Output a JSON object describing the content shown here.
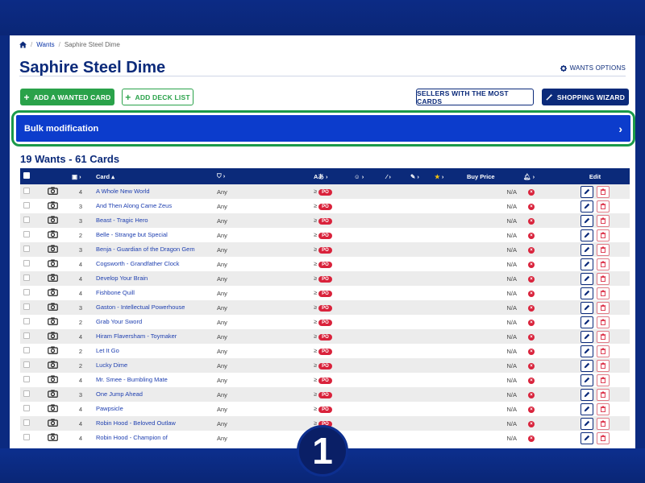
{
  "breadcrumb": {
    "wants": "Wants",
    "current": "Saphire Steel Dime"
  },
  "page_title": "Saphire Steel Dime",
  "wants_options_label": "WANTS OPTIONS",
  "buttons": {
    "add_wanted_card": "ADD A WANTED CARD",
    "add_deck_list": "ADD DECK LIST",
    "sellers_most_cards": "SELLERS WITH THE MOST CARDS",
    "shopping_wizard": "SHOPPING WIZARD"
  },
  "bulk_modification": "Bulk modification",
  "wants_summary": "19 Wants - 61 Cards",
  "step_number": "1",
  "table": {
    "headers": {
      "card": "Card",
      "buy_price": "Buy Price",
      "edit": "Edit"
    },
    "rows": [
      {
        "qty": "4",
        "name": "A Whole New World",
        "condition": "Any",
        "ge": "≥",
        "po": "PO",
        "price": "N/A"
      },
      {
        "qty": "3",
        "name": "And Then Along Came Zeus",
        "condition": "Any",
        "ge": "≥",
        "po": "PO",
        "price": "N/A"
      },
      {
        "qty": "3",
        "name": "Beast - Tragic Hero",
        "condition": "Any",
        "ge": "≥",
        "po": "PO",
        "price": "N/A"
      },
      {
        "qty": "2",
        "name": "Belle - Strange but Special",
        "condition": "Any",
        "ge": "≥",
        "po": "PO",
        "price": "N/A"
      },
      {
        "qty": "3",
        "name": "Benja - Guardian of the Dragon Gem",
        "condition": "Any",
        "ge": "≥",
        "po": "PO",
        "price": "N/A"
      },
      {
        "qty": "4",
        "name": "Cogsworth - Grandfather Clock",
        "condition": "Any",
        "ge": "≥",
        "po": "PO",
        "price": "N/A"
      },
      {
        "qty": "4",
        "name": "Develop Your Brain",
        "condition": "Any",
        "ge": "≥",
        "po": "PO",
        "price": "N/A"
      },
      {
        "qty": "4",
        "name": "Fishbone Quill",
        "condition": "Any",
        "ge": "≥",
        "po": "PO",
        "price": "N/A"
      },
      {
        "qty": "3",
        "name": "Gaston - Intellectual Powerhouse",
        "condition": "Any",
        "ge": "≥",
        "po": "PO",
        "price": "N/A"
      },
      {
        "qty": "2",
        "name": "Grab Your Sword",
        "condition": "Any",
        "ge": "≥",
        "po": "PO",
        "price": "N/A"
      },
      {
        "qty": "4",
        "name": "Hiram Flaversham - Toymaker",
        "condition": "Any",
        "ge": "≥",
        "po": "PO",
        "price": "N/A"
      },
      {
        "qty": "2",
        "name": "Let It Go",
        "condition": "Any",
        "ge": "≥",
        "po": "PO",
        "price": "N/A"
      },
      {
        "qty": "2",
        "name": "Lucky Dime",
        "condition": "Any",
        "ge": "≥",
        "po": "PO",
        "price": "N/A"
      },
      {
        "qty": "4",
        "name": "Mr. Smee - Bumbling Mate",
        "condition": "Any",
        "ge": "≥",
        "po": "PO",
        "price": "N/A"
      },
      {
        "qty": "3",
        "name": "One Jump Ahead",
        "condition": "Any",
        "ge": "≥",
        "po": "PO",
        "price": "N/A"
      },
      {
        "qty": "4",
        "name": "Pawpsicle",
        "condition": "Any",
        "ge": "≥",
        "po": "PO",
        "price": "N/A"
      },
      {
        "qty": "4",
        "name": "Robin Hood - Beloved Outlaw",
        "condition": "Any",
        "ge": "≥",
        "po": "PO",
        "price": "N/A"
      },
      {
        "qty": "4",
        "name": "Robin Hood - Champion of",
        "condition": "Any",
        "ge": "≥",
        "po": "PO",
        "price": "N/A"
      }
    ]
  },
  "colors": {
    "brand": "#0b2a7a",
    "green": "#2aa24a",
    "bulk": "#0c3ccc",
    "red": "#d9223b"
  }
}
